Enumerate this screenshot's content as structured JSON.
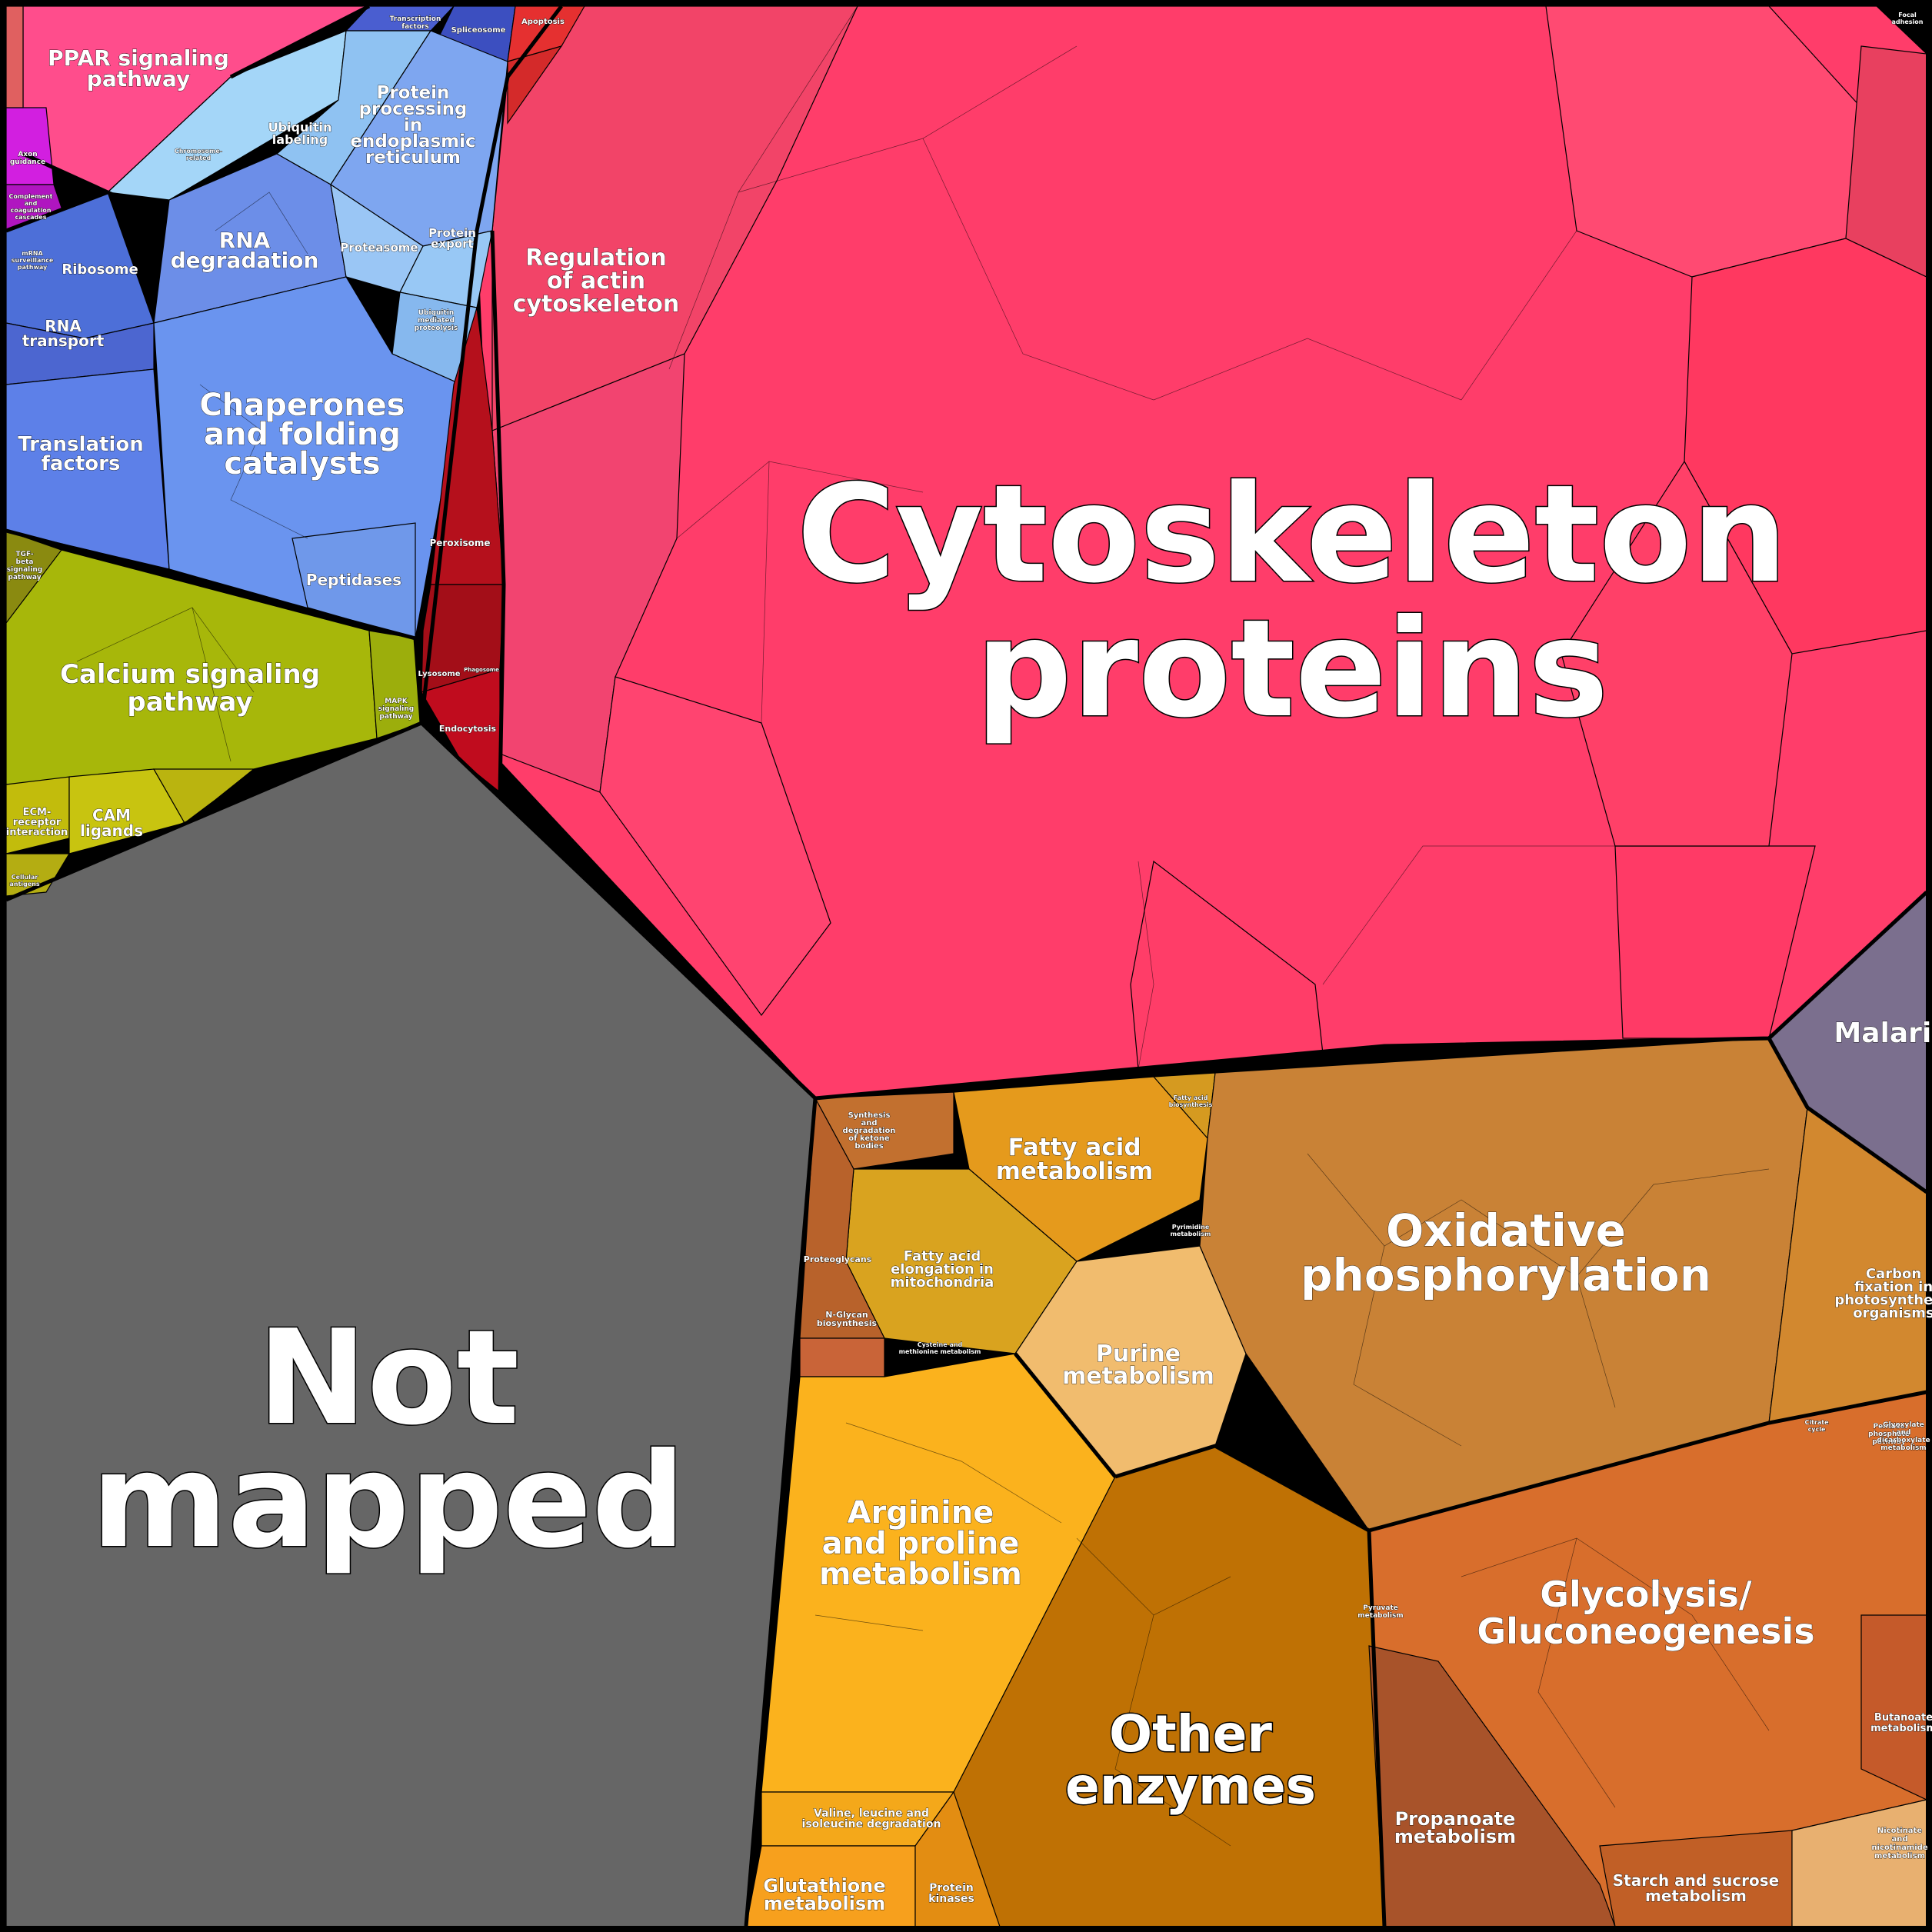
{
  "labels": {
    "cytoskeleton": [
      "Cytoskeleton",
      "proteins"
    ],
    "not_mapped": [
      "Not",
      "mapped"
    ],
    "regulation_actin": [
      "Regulation",
      "of actin",
      "cytoskeleton"
    ],
    "malaria": [
      "Malaria"
    ],
    "ppar": [
      "PPAR signaling",
      "pathway"
    ],
    "axon": [
      "Axon",
      "guidance"
    ],
    "complement": [
      "Complement",
      "and",
      "coagulation",
      "cascades"
    ],
    "transcription_factors": [
      "Transcription",
      "factors"
    ],
    "spliceosome": [
      "Spliceosome"
    ],
    "apoptosis": [
      "Apoptosis"
    ],
    "protein_processing": [
      "Protein",
      "processing",
      "in",
      "endoplasmic",
      "reticulum"
    ],
    "ubiquitin_labeling": [
      "Ubiquitin",
      "labeling"
    ],
    "chromosome": [
      "Chromosome-",
      "related"
    ],
    "rna_degradation": [
      "RNA",
      "degradation"
    ],
    "proteasome": [
      "Proteasome"
    ],
    "protein_export": [
      "Protein",
      "export"
    ],
    "ubiquitin_proteolysis": [
      "Ubiquitin",
      "mediated",
      "proteolysis"
    ],
    "ribosome": [
      "Ribosome"
    ],
    "mrna_surveillance": [
      "mRNA",
      "surveillance",
      "pathway"
    ],
    "rna_transport": [
      "RNA",
      "transport"
    ],
    "translation_factors": [
      "Translation",
      "factors"
    ],
    "chaperones": [
      "Chaperones",
      "and folding",
      "catalysts"
    ],
    "peptidases": [
      "Peptidases"
    ],
    "peroxisome": [
      "Peroxisome"
    ],
    "lysosome": [
      "Lysosome"
    ],
    "phagosome": [
      "Phagosome"
    ],
    "endocytosis": [
      "Endocytosis"
    ],
    "tgf_beta": [
      "TGF-",
      "beta",
      "signaling",
      "pathway"
    ],
    "calcium": [
      "Calcium signaling",
      "pathway"
    ],
    "mapk": [
      "MAPK",
      "signaling",
      "pathway"
    ],
    "ecm": [
      "ECM-",
      "receptor",
      "interaction"
    ],
    "cam": [
      "CAM",
      "ligands"
    ],
    "cellular_antigens": [
      "Cellular",
      "antigens"
    ],
    "fatty_acid_metabolism": [
      "Fatty acid",
      "metabolism"
    ],
    "fatty_acid_biosynthesis": [
      "Fatty acid",
      "biosynthesis"
    ],
    "synthesis_ketone": [
      "Synthesis",
      "and",
      "degradation",
      "of ketone",
      "bodies"
    ],
    "fatty_acid_elongation": [
      "Fatty acid",
      "elongation in",
      "mitochondria"
    ],
    "proteoglycans": [
      "Proteoglycans"
    ],
    "n_glycan": [
      "N-Glycan",
      "biosynthesis"
    ],
    "purine": [
      "Purine",
      "metabolism"
    ],
    "pyrimidine": [
      "Pyrimidine",
      "metabolism"
    ],
    "oxidative": [
      "Oxidative",
      "phosphorylation"
    ],
    "carbon_fixation": [
      "Carbon",
      "fixation in",
      "photosynthetic",
      "organisms"
    ],
    "arginine": [
      "Arginine",
      "and proline",
      "metabolism"
    ],
    "other_enzymes": [
      "Other",
      "enzymes"
    ],
    "glycolysis": [
      "Glycolysis/",
      "Gluconeogenesis"
    ],
    "propanoate": [
      "Propanoate",
      "metabolism"
    ],
    "pyruvate": [
      "Pyruvate",
      "metabolism"
    ],
    "butanoate": [
      "Butanoate",
      "metabolism"
    ],
    "nicotinate": [
      "Nicotinate",
      "and",
      "nicotinamide",
      "metabolism"
    ],
    "starch": [
      "Starch and sucrose",
      "metabolism"
    ],
    "pentose": [
      "Pentose",
      "phosphate",
      "pathway"
    ],
    "glyoxylate": [
      "Glyoxylate",
      "and",
      "dicarboxylate",
      "metabolism"
    ],
    "citrate": [
      "Citrate",
      "cycle"
    ],
    "valine": [
      "Valine, leucine and",
      "isoleucine degradation"
    ],
    "glutathione": [
      "Glutathione",
      "metabolism"
    ],
    "protein_kinases": [
      "Protein",
      "kinases"
    ],
    "cysteine": [
      "Cysteine and",
      "methionine metabolism"
    ],
    "focal_adhesion": [
      "Focal",
      "adhesion"
    ]
  },
  "colors": {
    "cytoskeleton": "#ff3d6a",
    "regulation_actin": "#f24468",
    "not_mapped": "#666666",
    "malaria": "#7b6f8e",
    "ppar": "#ff4d8c",
    "axon": "#d21fe0",
    "genetic_info": "#6a94ef",
    "ribosome_blue": "#4d6fd8",
    "light_blue": "#8fc8f2",
    "dark_blue": "#3c4fc0",
    "cellular_red": "#b5101c",
    "calcium": "#a7b70a",
    "tgf": "#8a8a10",
    "cam": "#c8c410",
    "fatty_acid": "#e59a1c",
    "fatty_elong": "#d9a31f",
    "purine": "#f1bc6e",
    "oxidative": "#c98236",
    "carbon": "#d2882f",
    "arginine": "#fbb21d",
    "other_enzymes": "#bf7104",
    "glycolysis": "#d86e2c",
    "propanoate": "#a8532a",
    "glutathione": "#f7a01d",
    "proteoglycan": "#b8622b"
  }
}
